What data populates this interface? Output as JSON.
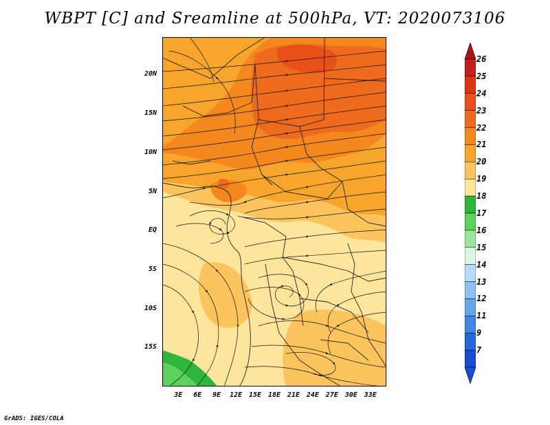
{
  "title": "WBPT [C] and Sreamline at 500hPa, VT: 2020073106",
  "credit": "GrADS: IGES/COLA",
  "lat_labels": [
    {
      "text": "20N",
      "lat": 20
    },
    {
      "text": "15N",
      "lat": 15
    },
    {
      "text": "10N",
      "lat": 10
    },
    {
      "text": "5N",
      "lat": 5
    },
    {
      "text": "EQ",
      "lat": 0
    },
    {
      "text": "5S",
      "lat": -5
    },
    {
      "text": "10S",
      "lat": -10
    },
    {
      "text": "15S",
      "lat": -15
    }
  ],
  "lon_labels": [
    {
      "text": "3E",
      "lon": 3
    },
    {
      "text": "6E",
      "lon": 6
    },
    {
      "text": "9E",
      "lon": 9
    },
    {
      "text": "12E",
      "lon": 12
    },
    {
      "text": "15E",
      "lon": 15
    },
    {
      "text": "18E",
      "lon": 18
    },
    {
      "text": "21E",
      "lon": 21
    },
    {
      "text": "24E",
      "lon": 24
    },
    {
      "text": "27E",
      "lon": 27
    },
    {
      "text": "30E",
      "lon": 30
    },
    {
      "text": "33E",
      "lon": 33
    }
  ],
  "domain": {
    "lon_min": 0.5,
    "lon_max": 35.5,
    "lat_min": -20,
    "lat_max": 24.8
  },
  "colorbar": {
    "labels": [
      "26",
      "25",
      "24",
      "23",
      "22",
      "21",
      "20",
      "19",
      "18",
      "17",
      "16",
      "15",
      "14",
      "13",
      "12",
      "11",
      "9",
      "7"
    ],
    "colors": [
      "#c41e1e",
      "#dc3414",
      "#e8501a",
      "#ee6a1c",
      "#f4871e",
      "#f8a52c",
      "#fbc45e",
      "#fde59c",
      "#2eb63a",
      "#5cd15c",
      "#9ae69a",
      "#dcf6e6",
      "#b6dcf6",
      "#8ec2f2",
      "#64a6ec",
      "#3e86e2",
      "#2468da",
      "#1a4cd2"
    ],
    "top_arrow_color": "#b01010",
    "bottom_arrow_color": "#1a4cd2"
  }
}
